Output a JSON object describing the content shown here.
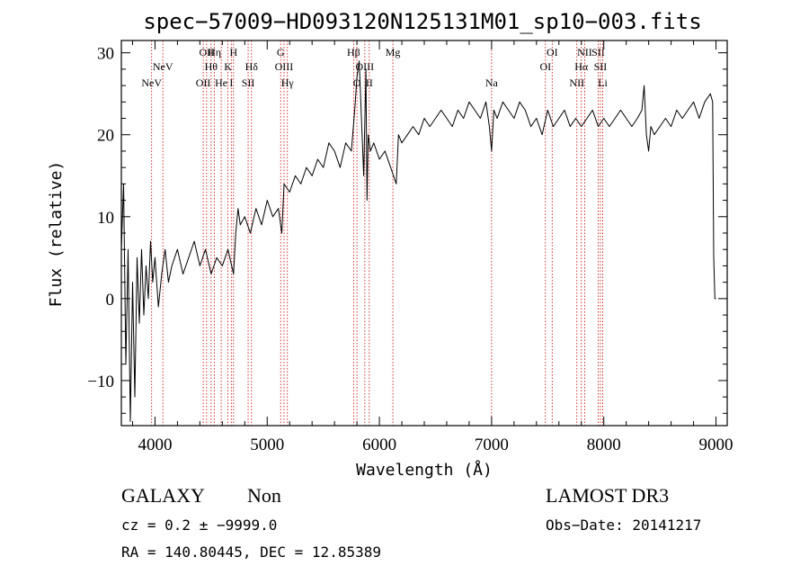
{
  "chart_data": {
    "type": "line",
    "title": "spec−57009−HD093120N125131M01_sp10−003.fits",
    "xlabel": "Wavelength (Å)",
    "ylabel": "Flux (relative)",
    "xlim": [
      3700,
      9100
    ],
    "ylim": [
      -15.5,
      31.5
    ],
    "xticks": [
      4000,
      5000,
      6000,
      7000,
      8000,
      9000
    ],
    "yticks": [
      -10,
      0,
      10,
      20,
      30
    ],
    "series": [
      {
        "name": "spectrum",
        "x": [
          3700,
          3720,
          3740,
          3760,
          3780,
          3800,
          3820,
          3840,
          3860,
          3880,
          3900,
          3920,
          3940,
          3960,
          3980,
          4000,
          4030,
          4060,
          4090,
          4120,
          4150,
          4200,
          4250,
          4300,
          4350,
          4400,
          4450,
          4500,
          4550,
          4600,
          4650,
          4700,
          4720,
          4740,
          4760,
          4800,
          4850,
          4900,
          4950,
          5000,
          5050,
          5100,
          5130,
          5150,
          5200,
          5250,
          5300,
          5350,
          5400,
          5450,
          5500,
          5550,
          5600,
          5650,
          5700,
          5750,
          5780,
          5800,
          5820,
          5840,
          5860,
          5880,
          5890,
          5900,
          5920,
          5950,
          6000,
          6050,
          6100,
          6150,
          6170,
          6200,
          6250,
          6300,
          6350,
          6400,
          6450,
          6500,
          6550,
          6600,
          6650,
          6700,
          6750,
          6800,
          6850,
          6900,
          6950,
          6980,
          7000,
          7020,
          7050,
          7100,
          7150,
          7200,
          7250,
          7300,
          7350,
          7400,
          7450,
          7500,
          7550,
          7600,
          7650,
          7700,
          7750,
          7800,
          7850,
          7900,
          7950,
          8000,
          8050,
          8100,
          8150,
          8200,
          8250,
          8300,
          8340,
          8360,
          8380,
          8400,
          8420,
          8450,
          8500,
          8550,
          8600,
          8650,
          8700,
          8750,
          8800,
          8850,
          8900,
          8950,
          8970,
          8980,
          8990,
          9000
        ],
        "values": [
          6,
          14,
          -8,
          6,
          -15,
          2,
          -12,
          5,
          -3,
          6,
          -2,
          4,
          0,
          7,
          2,
          5,
          -1,
          3,
          6,
          2,
          4,
          6,
          3,
          5,
          7,
          4,
          6,
          3,
          5,
          4,
          6,
          3,
          8,
          11,
          9,
          10,
          8,
          11,
          9,
          12,
          10,
          11,
          8,
          14,
          13,
          15,
          14,
          16,
          15,
          17,
          16,
          19,
          18,
          16,
          19,
          18,
          23,
          27,
          29,
          22,
          15,
          28,
          12,
          20,
          18,
          19,
          17,
          18,
          16,
          14,
          20,
          19,
          20,
          21,
          20,
          22,
          21,
          22,
          23,
          22,
          21,
          23,
          22,
          24,
          23,
          22,
          24,
          21,
          18,
          23,
          22,
          24,
          23,
          22,
          24,
          23,
          21,
          22,
          20,
          23,
          21,
          22,
          23,
          21,
          22,
          21,
          22,
          23,
          21,
          22,
          21,
          22,
          23,
          22,
          21,
          22,
          23,
          26,
          20,
          18,
          21,
          20,
          21,
          22,
          21,
          23,
          22,
          23,
          24,
          22,
          24,
          25,
          24,
          5,
          0,
          0
        ]
      }
    ],
    "line_markers": [
      {
        "x": 3970,
        "label": "NeV",
        "row": 3
      },
      {
        "x": 4070,
        "label": "NeV",
        "row": 2
      },
      {
        "x": 4430,
        "label": "OII",
        "row": 3
      },
      {
        "x": 4460,
        "label": "OII",
        "row": 1
      },
      {
        "x": 4500,
        "label": "Hθ",
        "row": 2
      },
      {
        "x": 4530,
        "label": "Hη",
        "row": 1
      },
      {
        "x": 4590,
        "label": "He",
        "row": 3
      },
      {
        "x": 4650,
        "label": "K",
        "row": 2
      },
      {
        "x": 4680,
        "label": "I",
        "row": 3
      },
      {
        "x": 4700,
        "label": "H",
        "row": 1
      },
      {
        "x": 4830,
        "label": "SII",
        "row": 3
      },
      {
        "x": 4860,
        "label": "Hδ",
        "row": 2
      },
      {
        "x": 5120,
        "label": "G",
        "row": 1
      },
      {
        "x": 5150,
        "label": "OIII",
        "row": 2
      },
      {
        "x": 5180,
        "label": "Hγ",
        "row": 3
      },
      {
        "x": 5770,
        "label": "Hβ",
        "row": 1
      },
      {
        "x": 5800,
        "label": "O",
        "row": 3
      },
      {
        "x": 5870,
        "label": "OIII",
        "row": 2
      },
      {
        "x": 5910,
        "label": "II",
        "row": 3
      },
      {
        "x": 6120,
        "label": "Mg",
        "row": 1
      },
      {
        "x": 7000,
        "label": "Na",
        "row": 3
      },
      {
        "x": 7480,
        "label": "OI",
        "row": 2
      },
      {
        "x": 7540,
        "label": "OI",
        "row": 1
      },
      {
        "x": 7760,
        "label": "NII",
        "row": 3
      },
      {
        "x": 7800,
        "label": "Hα",
        "row": 2
      },
      {
        "x": 7830,
        "label": "NII",
        "row": 1
      },
      {
        "x": 7950,
        "label": "SII",
        "row": 1
      },
      {
        "x": 7970,
        "label": "SII",
        "row": 2
      },
      {
        "x": 7990,
        "label": "Li",
        "row": 3
      }
    ]
  },
  "info": {
    "class": "GALAXY",
    "subclass": "Non",
    "survey": "LAMOST DR3",
    "cz": "cz = 0.2 ± −9999.0",
    "obs_date": "Obs−Date: 20141217",
    "radec": "RA = 140.80445, DEC =  12.85389"
  },
  "colors": {
    "spectrum": "#000000",
    "marker": "#cc0000"
  }
}
